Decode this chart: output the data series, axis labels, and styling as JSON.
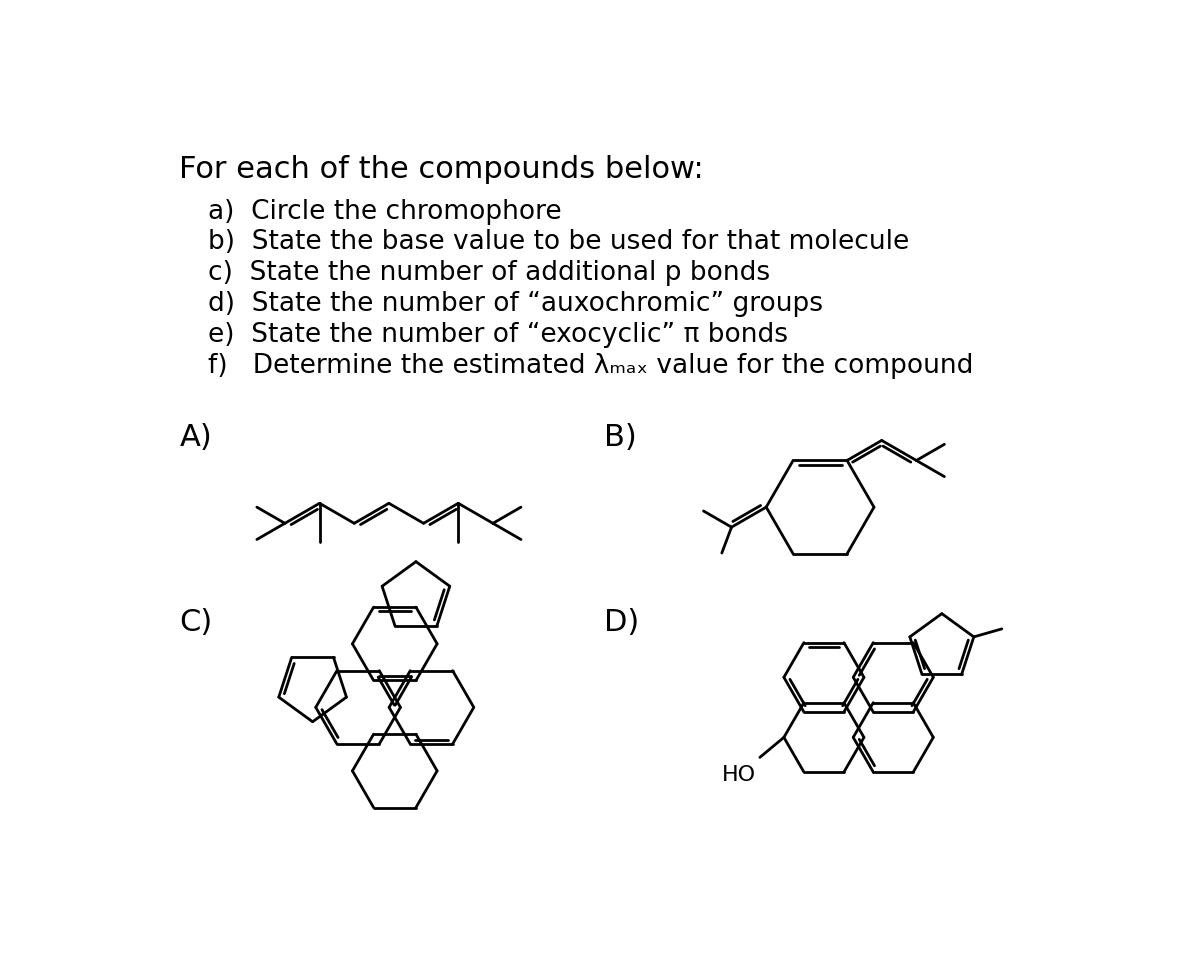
{
  "title_line": "For each of the compounds below:",
  "instructions": [
    "a)  Circle the chromophore",
    "b)  State the base value to be used for that molecule",
    "c)  State the number of additional p bonds",
    "d)  State the number of “auxochromic” groups",
    "e)  State the number of “exocyclic” π bonds",
    "f)   Determine the estimated λₘₐₓ value for the compound"
  ],
  "labels": [
    "A)",
    "B)",
    "C)",
    "D)"
  ],
  "ho_label": "HO",
  "background_color": "#ffffff",
  "text_color": "#000000",
  "line_color": "#000000",
  "line_width": 2.0,
  "title_fontsize": 22,
  "instruction_fontsize": 19,
  "label_fontsize": 22
}
